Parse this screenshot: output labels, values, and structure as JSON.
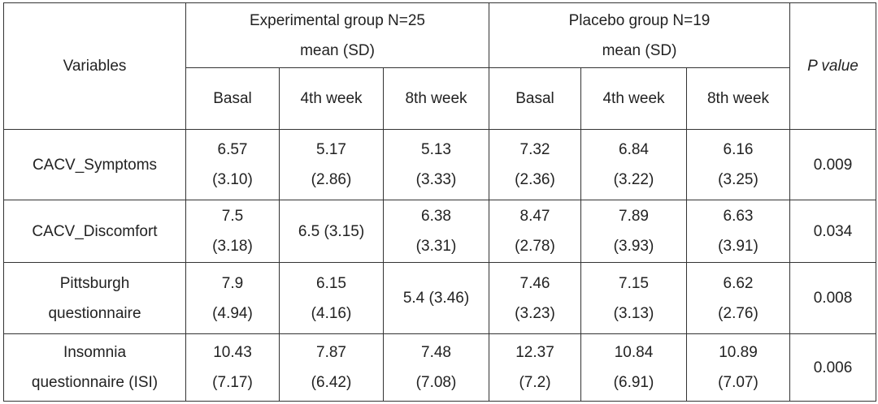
{
  "headers": {
    "variables": "Variables",
    "experimental": [
      "Experimental group N=25",
      "mean (SD)"
    ],
    "placebo": [
      "Placebo group N=19",
      "mean (SD)"
    ],
    "p_value": "P value",
    "periods": [
      "Basal",
      "4th week",
      "8th week"
    ]
  },
  "rows": [
    {
      "variable": [
        "CACV_Symptoms"
      ],
      "exp": [
        [
          "6.57",
          "(3.10)"
        ],
        [
          "5.17",
          "(2.86)"
        ],
        [
          "5.13",
          "(3.33)"
        ]
      ],
      "pla": [
        [
          "7.32",
          "(2.36)"
        ],
        [
          "6.84",
          "(3.22)"
        ],
        [
          "6.16",
          "(3.25)"
        ]
      ],
      "p": "0.009"
    },
    {
      "variable": [
        "CACV_Discomfort"
      ],
      "exp": [
        [
          "7.5",
          "(3.18)"
        ],
        [
          "6.5 (3.15)"
        ],
        [
          "6.38",
          "(3.31)"
        ]
      ],
      "pla": [
        [
          "8.47",
          "(2.78)"
        ],
        [
          "7.89",
          "(3.93)"
        ],
        [
          "6.63",
          "(3.91)"
        ]
      ],
      "p": "0.034"
    },
    {
      "variable": [
        "Pittsburgh",
        "questionnaire"
      ],
      "exp": [
        [
          "7.9",
          "(4.94)"
        ],
        [
          "6.15",
          "(4.16)"
        ],
        [
          "5.4 (3.46)"
        ]
      ],
      "pla": [
        [
          "7.46",
          "(3.23)"
        ],
        [
          "7.15",
          "(3.13)"
        ],
        [
          "6.62",
          "(2.76)"
        ]
      ],
      "p": "0.008"
    },
    {
      "variable": [
        "Insomnia",
        "questionnaire (ISI)"
      ],
      "exp": [
        [
          "10.43",
          "(7.17)"
        ],
        [
          "7.87",
          "(6.42)"
        ],
        [
          "7.48",
          "(7.08)"
        ]
      ],
      "pla": [
        [
          "12.37",
          "(7.2)"
        ],
        [
          "10.84",
          "(6.91)"
        ],
        [
          "10.89",
          "(7.07)"
        ]
      ],
      "p": "0.006"
    }
  ]
}
